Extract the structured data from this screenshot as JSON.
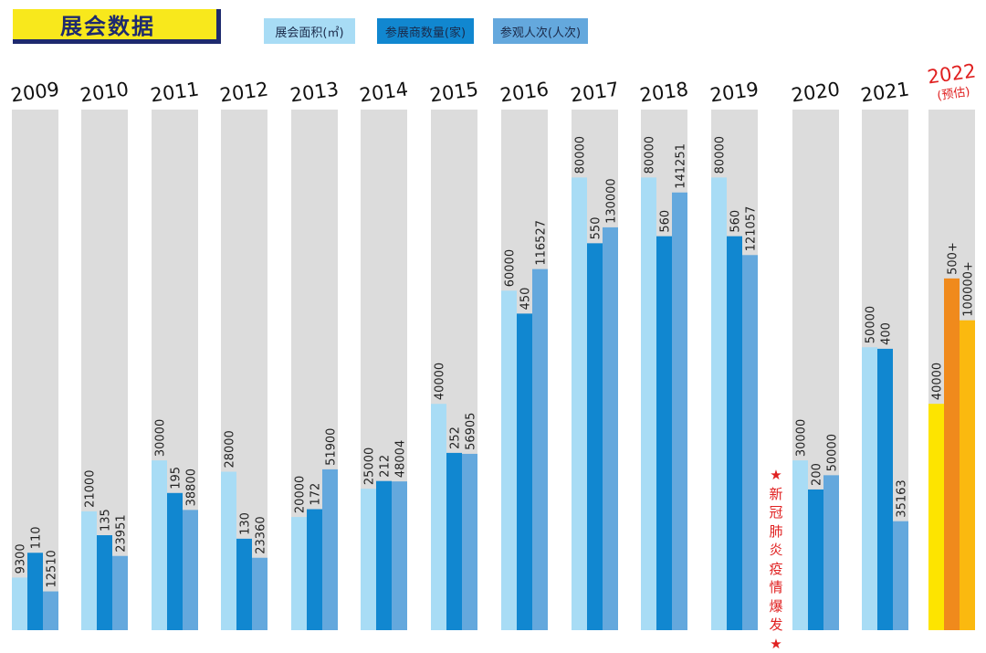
{
  "title": "展会数据",
  "legend": [
    {
      "label": "展会面积(㎡)",
      "color": "#a8dcf5"
    },
    {
      "label": "参展商数量(家)",
      "color": "#1187d0"
    },
    {
      "label": "参观人次(人次)",
      "color": "#64a8dd"
    }
  ],
  "colors": {
    "background_bar": "#dcdcdc",
    "area": "#a8dcf5",
    "exhibitors": "#1187d0",
    "visitors": "#64a8dd",
    "forecast_area": "#fde400",
    "forecast_exhibitors": "#f08a1c",
    "forecast_visitors": "#fbb90f",
    "forecast_year": "#e02020"
  },
  "note": "★新冠肺炎疫情爆发★",
  "chart_data": {
    "type": "bar",
    "categories": [
      "2009",
      "2010",
      "2011",
      "2012",
      "2013",
      "2014",
      "2015",
      "2016",
      "2017",
      "2018",
      "2019",
      "2020",
      "2021",
      "2022"
    ],
    "forecast_category": {
      "year": "2022",
      "sub": "(预估)"
    },
    "series": [
      {
        "name": "展会面积(㎡)",
        "values": [
          9300,
          21000,
          30000,
          28000,
          20000,
          25000,
          40000,
          60000,
          80000,
          80000,
          80000,
          30000,
          50000,
          40000
        ],
        "labels": [
          "9300",
          "21000",
          "30000",
          "28000",
          "20000",
          "25000",
          "40000",
          "60000",
          "80000",
          "80000",
          "80000",
          "30000",
          "50000",
          "40000"
        ]
      },
      {
        "name": "参展商数量(家)",
        "values": [
          110,
          135,
          195,
          130,
          172,
          212,
          252,
          450,
          550,
          560,
          560,
          200,
          400,
          500
        ],
        "labels": [
          "110",
          "135",
          "195",
          "130",
          "172",
          "212",
          "252",
          "450",
          "550",
          "560",
          "560",
          "200",
          "400",
          "500+"
        ]
      },
      {
        "name": "参观人次(人次)",
        "values": [
          12510,
          23951,
          38800,
          23360,
          51900,
          48004,
          56905,
          116527,
          130000,
          141251,
          121057,
          50000,
          35163,
          100000
        ],
        "labels": [
          "12510",
          "23951",
          "38800",
          "23360",
          "51900",
          "48004",
          "56905",
          "116527",
          "130000",
          "141251",
          "121057",
          "50000",
          "35163",
          "100000+"
        ]
      }
    ],
    "scales_note": "each series drawn on its own independent axis"
  }
}
